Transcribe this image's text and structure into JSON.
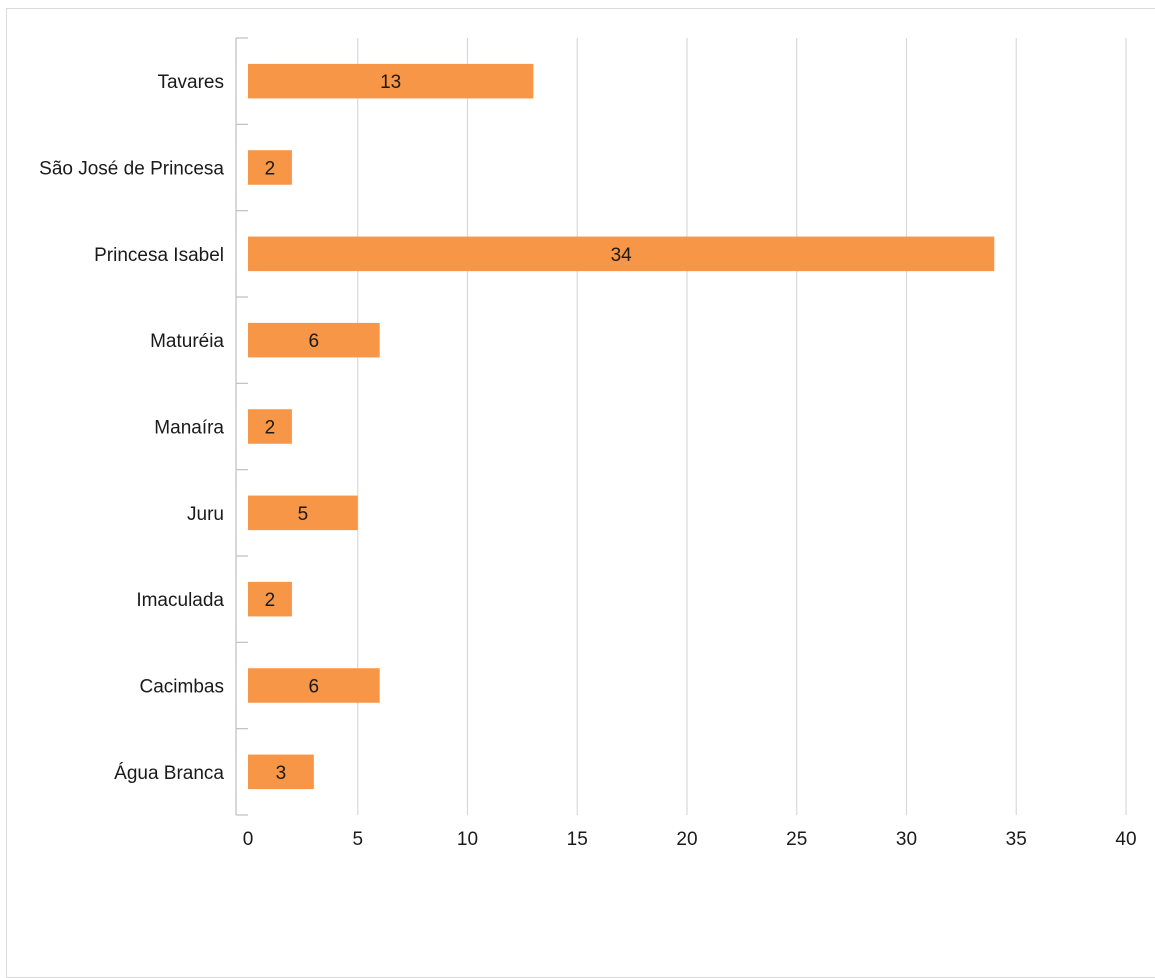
{
  "chart_data": {
    "type": "bar",
    "orientation": "horizontal",
    "title": "",
    "xlabel": "",
    "ylabel": "",
    "categories": [
      "Água Branca",
      "Cacimbas",
      "Imaculada",
      "Juru",
      "Manaíra",
      "Maturéia",
      "Princesa Isabel",
      "São José de Princesa",
      "Tavares"
    ],
    "values": [
      3,
      6,
      2,
      5,
      2,
      6,
      34,
      2,
      13
    ],
    "xlim": [
      0,
      40
    ],
    "xticks": [
      0,
      5,
      10,
      15,
      20,
      25,
      30,
      35,
      40
    ],
    "grid": "vertical",
    "legend": "none",
    "data_labels": true,
    "colors": {
      "bar": "#F79646",
      "grid": "#d9d9d9",
      "axis": "#bfbfbf"
    }
  }
}
